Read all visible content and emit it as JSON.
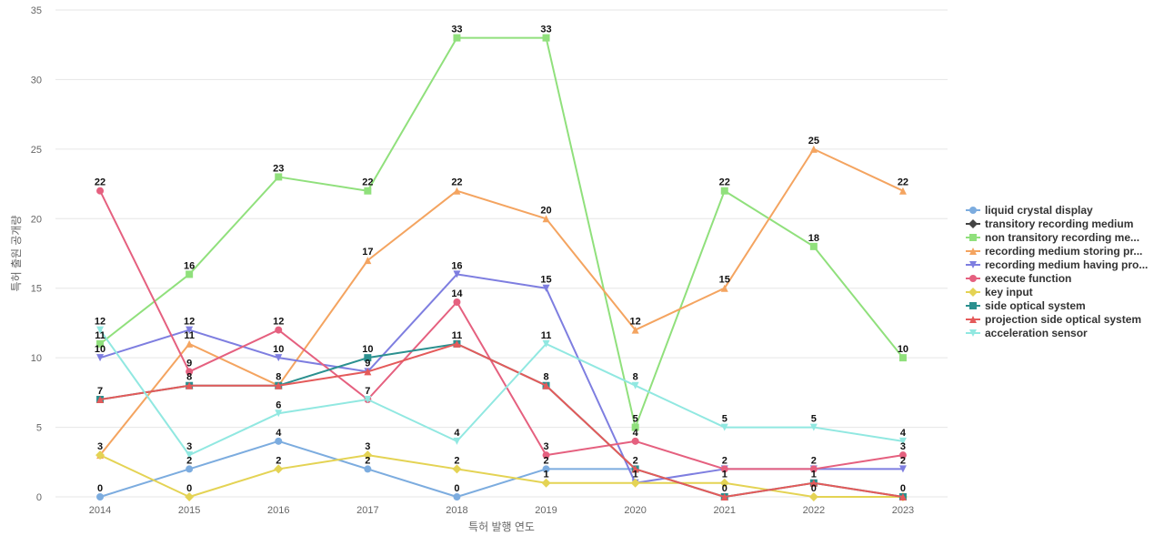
{
  "chart_data": {
    "type": "line",
    "xlabel": "특허 발행 연도",
    "ylabel": "특허 출원 공개량",
    "ylim": [
      0,
      35
    ],
    "yticks": [
      0,
      5,
      10,
      15,
      20,
      25,
      30,
      35
    ],
    "x": [
      "2014",
      "2015",
      "2016",
      "2017",
      "2018",
      "2019",
      "2020",
      "2021",
      "2022",
      "2023"
    ],
    "grid": "horizontal",
    "legend_position": "right",
    "series": [
      {
        "name": "liquid crystal display",
        "color": "#7cacdf",
        "marker": "circle",
        "values": [
          0,
          2,
          4,
          2,
          0,
          2,
          2,
          null,
          null,
          null
        ]
      },
      {
        "name": "transitory recording medium",
        "color": "#444444",
        "marker": "diamond",
        "values": [
          null,
          null,
          null,
          null,
          null,
          null,
          null,
          null,
          null,
          null
        ]
      },
      {
        "name": "non transitory recording me...",
        "color": "#90e07c",
        "marker": "square",
        "values": [
          11,
          16,
          23,
          22,
          33,
          33,
          5,
          22,
          18,
          10
        ]
      },
      {
        "name": "recording medium storing pr...",
        "color": "#f4a460",
        "marker": "triangle",
        "values": [
          3,
          11,
          8,
          17,
          22,
          20,
          12,
          15,
          25,
          22
        ]
      },
      {
        "name": "recording medium having pro...",
        "color": "#7e7ee0",
        "marker": "triangle-down",
        "values": [
          10,
          12,
          10,
          9,
          16,
          15,
          1,
          2,
          2,
          2
        ]
      },
      {
        "name": "execute function",
        "color": "#e5607f",
        "marker": "circle",
        "values": [
          22,
          9,
          12,
          7,
          14,
          3,
          4,
          2,
          2,
          3
        ]
      },
      {
        "name": "key input",
        "color": "#e4d354",
        "marker": "diamond",
        "values": [
          3,
          0,
          2,
          3,
          2,
          1,
          1,
          1,
          0,
          0
        ]
      },
      {
        "name": "side optical system",
        "color": "#2b908f",
        "marker": "square",
        "values": [
          7,
          8,
          8,
          10,
          11,
          8,
          2,
          0,
          1,
          0
        ]
      },
      {
        "name": "projection side optical system",
        "color": "#e45a5a",
        "marker": "triangle",
        "values": [
          7,
          8,
          8,
          9,
          11,
          8,
          2,
          0,
          1,
          0
        ]
      },
      {
        "name": "acceleration sensor",
        "color": "#91e8e1",
        "marker": "triangle-down",
        "values": [
          12,
          3,
          6,
          7,
          4,
          11,
          8,
          5,
          5,
          4
        ]
      }
    ],
    "data_labels": [
      {
        "x": "2014",
        "y": 22,
        "text": "22"
      },
      {
        "x": "2014",
        "y": 12,
        "text": "12"
      },
      {
        "x": "2014",
        "y": 11,
        "text": "11"
      },
      {
        "x": "2014",
        "y": 10,
        "text": "10"
      },
      {
        "x": "2014",
        "y": 7,
        "text": "7"
      },
      {
        "x": "2014",
        "y": 3,
        "text": "3"
      },
      {
        "x": "2014",
        "y": 0,
        "text": "0"
      },
      {
        "x": "2015",
        "y": 16,
        "text": "16"
      },
      {
        "x": "2015",
        "y": 12,
        "text": "12"
      },
      {
        "x": "2015",
        "y": 11,
        "text": "11"
      },
      {
        "x": "2015",
        "y": 9,
        "text": "9"
      },
      {
        "x": "2015",
        "y": 8,
        "text": "8"
      },
      {
        "x": "2015",
        "y": 3,
        "text": "3"
      },
      {
        "x": "2015",
        "y": 2,
        "text": "2"
      },
      {
        "x": "2015",
        "y": 0,
        "text": "0"
      },
      {
        "x": "2016",
        "y": 23,
        "text": "23"
      },
      {
        "x": "2016",
        "y": 12,
        "text": "12"
      },
      {
        "x": "2016",
        "y": 10,
        "text": "10"
      },
      {
        "x": "2016",
        "y": 8,
        "text": "8"
      },
      {
        "x": "2016",
        "y": 6,
        "text": "6"
      },
      {
        "x": "2016",
        "y": 4,
        "text": "4"
      },
      {
        "x": "2016",
        "y": 2,
        "text": "2"
      },
      {
        "x": "2017",
        "y": 22,
        "text": "22"
      },
      {
        "x": "2017",
        "y": 17,
        "text": "17"
      },
      {
        "x": "2017",
        "y": 10,
        "text": "10"
      },
      {
        "x": "2017",
        "y": 9,
        "text": "9"
      },
      {
        "x": "2017",
        "y": 7,
        "text": "7"
      },
      {
        "x": "2017",
        "y": 3,
        "text": "3"
      },
      {
        "x": "2017",
        "y": 2,
        "text": "2"
      },
      {
        "x": "2018",
        "y": 33,
        "text": "33"
      },
      {
        "x": "2018",
        "y": 22,
        "text": "22"
      },
      {
        "x": "2018",
        "y": 16,
        "text": "16"
      },
      {
        "x": "2018",
        "y": 14,
        "text": "14"
      },
      {
        "x": "2018",
        "y": 11,
        "text": "11"
      },
      {
        "x": "2018",
        "y": 4,
        "text": "4"
      },
      {
        "x": "2018",
        "y": 2,
        "text": "2"
      },
      {
        "x": "2018",
        "y": 0,
        "text": "0"
      },
      {
        "x": "2019",
        "y": 33,
        "text": "33"
      },
      {
        "x": "2019",
        "y": 20,
        "text": "20"
      },
      {
        "x": "2019",
        "y": 15,
        "text": "15"
      },
      {
        "x": "2019",
        "y": 11,
        "text": "11"
      },
      {
        "x": "2019",
        "y": 8,
        "text": "8"
      },
      {
        "x": "2019",
        "y": 3,
        "text": "3"
      },
      {
        "x": "2019",
        "y": 2,
        "text": "2"
      },
      {
        "x": "2019",
        "y": 1,
        "text": "1"
      },
      {
        "x": "2020",
        "y": 12,
        "text": "12"
      },
      {
        "x": "2020",
        "y": 8,
        "text": "8"
      },
      {
        "x": "2020",
        "y": 5,
        "text": "5"
      },
      {
        "x": "2020",
        "y": 4,
        "text": "4"
      },
      {
        "x": "2020",
        "y": 2,
        "text": "2"
      },
      {
        "x": "2020",
        "y": 1,
        "text": "1"
      },
      {
        "x": "2021",
        "y": 22,
        "text": "22"
      },
      {
        "x": "2021",
        "y": 15,
        "text": "15"
      },
      {
        "x": "2021",
        "y": 5,
        "text": "5"
      },
      {
        "x": "2021",
        "y": 2,
        "text": "2"
      },
      {
        "x": "2021",
        "y": 1,
        "text": "1"
      },
      {
        "x": "2021",
        "y": 0,
        "text": "0"
      },
      {
        "x": "2022",
        "y": 25,
        "text": "25"
      },
      {
        "x": "2022",
        "y": 18,
        "text": "18"
      },
      {
        "x": "2022",
        "y": 5,
        "text": "5"
      },
      {
        "x": "2022",
        "y": 2,
        "text": "2"
      },
      {
        "x": "2022",
        "y": 1,
        "text": "1"
      },
      {
        "x": "2022",
        "y": 0,
        "text": "0"
      },
      {
        "x": "2023",
        "y": 22,
        "text": "22"
      },
      {
        "x": "2023",
        "y": 10,
        "text": "10"
      },
      {
        "x": "2023",
        "y": 4,
        "text": "4"
      },
      {
        "x": "2023",
        "y": 3,
        "text": "3"
      },
      {
        "x": "2023",
        "y": 2,
        "text": "2"
      },
      {
        "x": "2023",
        "y": 0,
        "text": "0"
      }
    ]
  }
}
